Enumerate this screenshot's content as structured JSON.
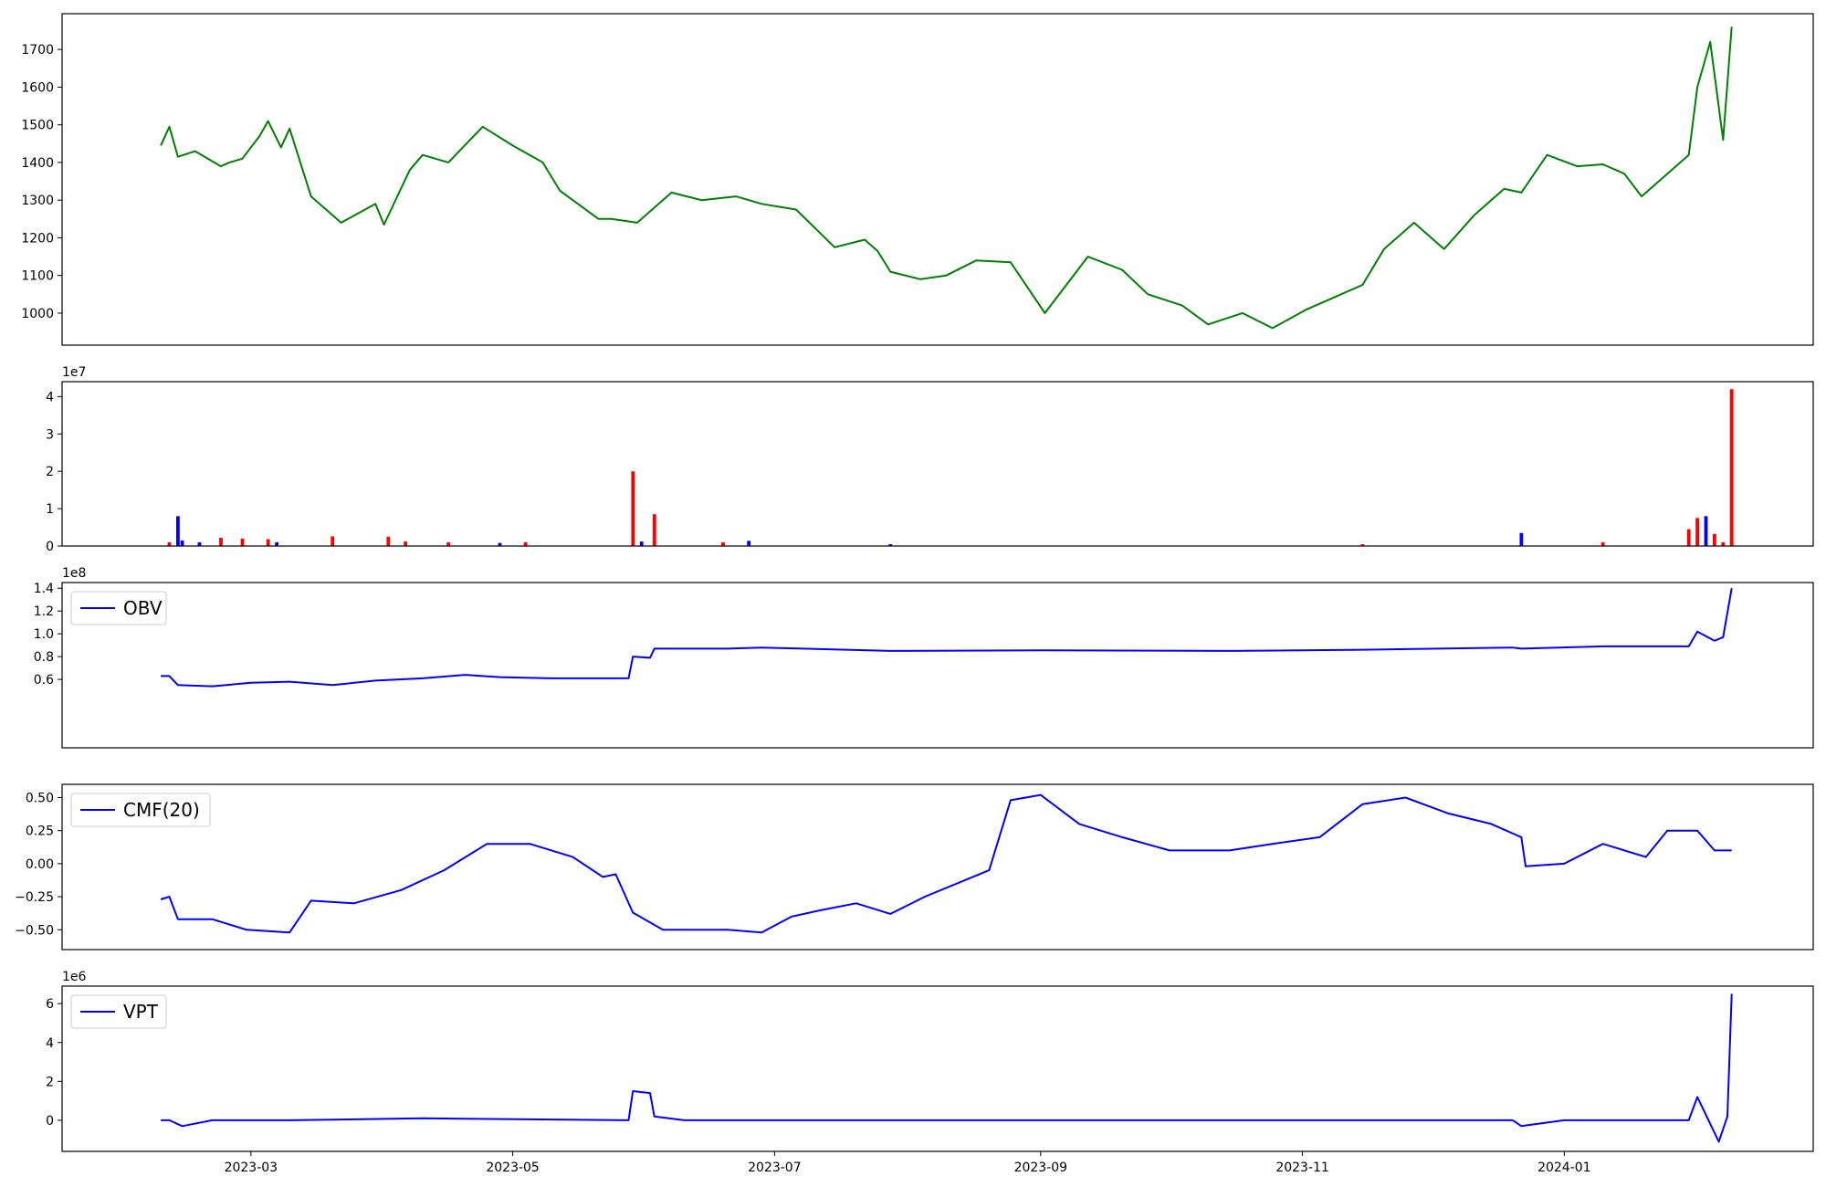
{
  "chart_data": [
    {
      "id": "price",
      "type": "line",
      "color": "#008000",
      "ylim": [
        915,
        1795
      ],
      "yticks": [
        1000,
        1100,
        1200,
        1300,
        1400,
        1500,
        1600,
        1700
      ],
      "ytick_labels": [
        "1000",
        "1100",
        "1200",
        "1300",
        "1400",
        "1500",
        "1600",
        "1700"
      ],
      "exponent_label": "",
      "legend": "",
      "series": [
        {
          "x": [
            "2023-02-08",
            "2023-02-10",
            "2023-02-12",
            "2023-02-16",
            "2023-02-22",
            "2023-02-24",
            "2023-02-27",
            "2023-03-03",
            "2023-03-05",
            "2023-03-08",
            "2023-03-10",
            "2023-03-15",
            "2023-03-22",
            "2023-03-30",
            "2023-04-01",
            "2023-04-07",
            "2023-04-10",
            "2023-04-16",
            "2023-04-24",
            "2023-05-01",
            "2023-05-08",
            "2023-05-12",
            "2023-05-21",
            "2023-05-24",
            "2023-05-30",
            "2023-06-07",
            "2023-06-14",
            "2023-06-22",
            "2023-06-28",
            "2023-07-06",
            "2023-07-15",
            "2023-07-22",
            "2023-07-25",
            "2023-07-28",
            "2023-08-04",
            "2023-08-10",
            "2023-08-17",
            "2023-08-25",
            "2023-09-02",
            "2023-09-12",
            "2023-09-20",
            "2023-09-26",
            "2023-10-04",
            "2023-10-10",
            "2023-10-18",
            "2023-10-25",
            "2023-11-02",
            "2023-11-08",
            "2023-11-15",
            "2023-11-20",
            "2023-11-27",
            "2023-12-04",
            "2023-12-11",
            "2023-12-18",
            "2023-12-22",
            "2023-12-28",
            "2024-01-04",
            "2024-01-10",
            "2024-01-15",
            "2024-01-19",
            "2024-01-22",
            "2024-01-26",
            "2024-01-30",
            "2024-02-01",
            "2024-02-04",
            "2024-02-07",
            "2024-02-09"
          ],
          "y": [
            1445,
            1495,
            1415,
            1430,
            1390,
            1400,
            1410,
            1470,
            1510,
            1440,
            1490,
            1310,
            1240,
            1290,
            1235,
            1380,
            1420,
            1400,
            1495,
            1445,
            1400,
            1325,
            1250,
            1250,
            1240,
            1320,
            1300,
            1310,
            1290,
            1275,
            1175,
            1195,
            1165,
            1110,
            1090,
            1100,
            1140,
            1135,
            1000,
            1150,
            1115,
            1050,
            1020,
            970,
            1000,
            960,
            1010,
            1040,
            1075,
            1170,
            1240,
            1170,
            1260,
            1330,
            1320,
            1420,
            1390,
            1395,
            1370,
            1310,
            1340,
            1380,
            1420,
            1600,
            1720,
            1460,
            1760
          ]
        }
      ]
    },
    {
      "id": "volume",
      "type": "bar",
      "colors": {
        "up": "#ff0000",
        "down": "#0000ff"
      },
      "ylim": [
        0,
        44000000.0
      ],
      "yticks": [
        0,
        10000000.0,
        20000000.0,
        30000000.0,
        40000000.0
      ],
      "ytick_labels": [
        "0",
        "1",
        "2",
        "3",
        "4"
      ],
      "exponent_label": "1e7",
      "legend": "",
      "bars": [
        {
          "x": "2023-02-10",
          "v": 1000000.0,
          "dir": "up"
        },
        {
          "x": "2023-02-12",
          "v": 8000000.0,
          "dir": "down"
        },
        {
          "x": "2023-02-13",
          "v": 1500000.0,
          "dir": "down"
        },
        {
          "x": "2023-02-17",
          "v": 1000000.0,
          "dir": "down"
        },
        {
          "x": "2023-02-22",
          "v": 2200000.0,
          "dir": "up"
        },
        {
          "x": "2023-02-27",
          "v": 2000000.0,
          "dir": "up"
        },
        {
          "x": "2023-03-05",
          "v": 1800000.0,
          "dir": "up"
        },
        {
          "x": "2023-03-07",
          "v": 1000000.0,
          "dir": "down"
        },
        {
          "x": "2023-03-20",
          "v": 2600000.0,
          "dir": "up"
        },
        {
          "x": "2023-04-02",
          "v": 2500000.0,
          "dir": "up"
        },
        {
          "x": "2023-04-06",
          "v": 1200000.0,
          "dir": "up"
        },
        {
          "x": "2023-04-16",
          "v": 1000000.0,
          "dir": "up"
        },
        {
          "x": "2023-04-28",
          "v": 800000.0,
          "dir": "down"
        },
        {
          "x": "2023-05-04",
          "v": 1000000.0,
          "dir": "up"
        },
        {
          "x": "2023-05-29",
          "v": 20000000.0,
          "dir": "up"
        },
        {
          "x": "2023-05-31",
          "v": 1200000.0,
          "dir": "down"
        },
        {
          "x": "2023-06-03",
          "v": 8500000.0,
          "dir": "up"
        },
        {
          "x": "2023-06-19",
          "v": 1000000.0,
          "dir": "up"
        },
        {
          "x": "2023-06-25",
          "v": 1400000.0,
          "dir": "down"
        },
        {
          "x": "2023-07-28",
          "v": 500000.0,
          "dir": "down"
        },
        {
          "x": "2023-11-15",
          "v": 500000.0,
          "dir": "up"
        },
        {
          "x": "2023-12-22",
          "v": 3500000.0,
          "dir": "down"
        },
        {
          "x": "2024-01-10",
          "v": 1000000.0,
          "dir": "up"
        },
        {
          "x": "2024-01-30",
          "v": 4500000.0,
          "dir": "up"
        },
        {
          "x": "2024-02-01",
          "v": 7500000.0,
          "dir": "up"
        },
        {
          "x": "2024-02-03",
          "v": 8000000.0,
          "dir": "down"
        },
        {
          "x": "2024-02-05",
          "v": 3200000.0,
          "dir": "up"
        },
        {
          "x": "2024-02-07",
          "v": 1000000.0,
          "dir": "up"
        },
        {
          "x": "2024-02-09",
          "v": 42000000.0,
          "dir": "up"
        }
      ]
    },
    {
      "id": "obv",
      "type": "line",
      "color": "#0000ff",
      "ylim": [
        0.5,
        145000000.0
      ],
      "yticks": [
        60000000.0,
        80000000.0,
        100000000.0,
        120000000.0,
        140000000.0
      ],
      "ytick_labels": [
        "0.6",
        "0.8",
        "1.0",
        "1.2",
        "1.4"
      ],
      "exponent_label": "1e8",
      "legend": "OBV",
      "series": [
        {
          "x": [
            "2023-02-08",
            "2023-02-10",
            "2023-02-12",
            "2023-02-20",
            "2023-03-01",
            "2023-03-10",
            "2023-03-20",
            "2023-03-30",
            "2023-04-10",
            "2023-04-20",
            "2023-04-28",
            "2023-05-10",
            "2023-05-28",
            "2023-05-29",
            "2023-06-02",
            "2023-06-03",
            "2023-06-20",
            "2023-06-28",
            "2023-07-28",
            "2023-09-01",
            "2023-10-15",
            "2023-11-15",
            "2023-12-20",
            "2023-12-22",
            "2024-01-10",
            "2024-01-30",
            "2024-02-01",
            "2024-02-05",
            "2024-02-07",
            "2024-02-09"
          ],
          "y": [
            63000000.0,
            63000000.0,
            55000000.0,
            54000000.0,
            57000000.0,
            58000000.0,
            55000000.0,
            59000000.0,
            61000000.0,
            64000000.0,
            62000000.0,
            61000000.0,
            61000000.0,
            80000000.0,
            79000000.0,
            87000000.0,
            87000000.0,
            88000000.0,
            85000000.0,
            85500000.0,
            85000000.0,
            86000000.0,
            88000000.0,
            87000000.0,
            89000000.0,
            89000000.0,
            102000000.0,
            94000000.0,
            97000000.0,
            140000000.0
          ]
        }
      ]
    },
    {
      "id": "cmf",
      "type": "line",
      "color": "#0000ff",
      "ylim": [
        -0.65,
        0.6
      ],
      "yticks": [
        -0.5,
        -0.25,
        0.0,
        0.25,
        0.5
      ],
      "ytick_labels": [
        "−0.50",
        "−0.25",
        "0.00",
        "0.25",
        "0.50"
      ],
      "exponent_label": "",
      "legend": "CMF(20)",
      "series": [
        {
          "x": [
            "2023-02-08",
            "2023-02-10",
            "2023-02-12",
            "2023-02-20",
            "2023-02-28",
            "2023-03-10",
            "2023-03-15",
            "2023-03-25",
            "2023-04-05",
            "2023-04-15",
            "2023-04-25",
            "2023-05-05",
            "2023-05-15",
            "2023-05-22",
            "2023-05-25",
            "2023-05-29",
            "2023-06-05",
            "2023-06-20",
            "2023-06-28",
            "2023-07-05",
            "2023-07-12",
            "2023-07-20",
            "2023-07-28",
            "2023-08-05",
            "2023-08-20",
            "2023-08-25",
            "2023-09-01",
            "2023-09-10",
            "2023-09-20",
            "2023-10-01",
            "2023-10-15",
            "2023-10-25",
            "2023-11-05",
            "2023-11-15",
            "2023-11-25",
            "2023-12-05",
            "2023-12-15",
            "2023-12-22",
            "2023-12-23",
            "2024-01-01",
            "2024-01-10",
            "2024-01-20",
            "2024-01-25",
            "2024-02-01",
            "2024-02-05",
            "2024-02-09"
          ],
          "y": [
            -0.27,
            -0.25,
            -0.42,
            -0.42,
            -0.5,
            -0.52,
            -0.28,
            -0.3,
            -0.2,
            -0.05,
            0.15,
            0.15,
            0.05,
            -0.1,
            -0.08,
            -0.37,
            -0.5,
            -0.5,
            -0.52,
            -0.4,
            -0.35,
            -0.3,
            -0.38,
            -0.25,
            -0.05,
            0.48,
            0.52,
            0.3,
            0.2,
            0.1,
            0.1,
            0.15,
            0.2,
            0.45,
            0.5,
            0.38,
            0.3,
            0.2,
            -0.02,
            0.0,
            0.15,
            0.05,
            0.25,
            0.25,
            0.1,
            0.1
          ]
        }
      ]
    },
    {
      "id": "vpt",
      "type": "line",
      "color": "#0000ff",
      "ylim": [
        -1600000.0,
        6900000.0
      ],
      "yticks": [
        0,
        2000000.0,
        4000000.0,
        6000000.0
      ],
      "ytick_labels": [
        "0",
        "2",
        "4",
        "6"
      ],
      "exponent_label": "1e6",
      "legend": "VPT",
      "series": [
        {
          "x": [
            "2023-02-08",
            "2023-02-10",
            "2023-02-13",
            "2023-02-20",
            "2023-03-10",
            "2023-04-10",
            "2023-05-28",
            "2023-05-29",
            "2023-06-02",
            "2023-06-03",
            "2023-06-10",
            "2023-08-01",
            "2023-12-20",
            "2023-12-22",
            "2024-01-01",
            "2024-01-20",
            "2024-01-30",
            "2024-02-01",
            "2024-02-06",
            "2024-02-08",
            "2024-02-09"
          ],
          "y": [
            0.0,
            0.0,
            -300000.0,
            0.0,
            0.0,
            100000.0,
            0.0,
            1500000.0,
            1400000.0,
            200000.0,
            0.0,
            0.0,
            0.0,
            -300000.0,
            0.0,
            0.0,
            0.0,
            1200000.0,
            -1100000.0,
            200000.0,
            6500000.0
          ]
        }
      ]
    }
  ],
  "x_axis": {
    "domain": [
      "2023-01-16",
      "2024-02-28"
    ],
    "ticks": [
      "2023-03-01",
      "2023-05-01",
      "2023-07-01",
      "2023-09-01",
      "2023-11-01",
      "2024-01-01"
    ],
    "tick_labels": [
      "2023-03",
      "2023-05",
      "2023-07",
      "2023-09",
      "2023-11",
      "2024-01"
    ]
  }
}
